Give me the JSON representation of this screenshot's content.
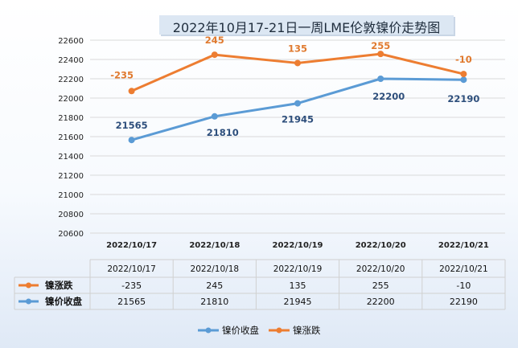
{
  "chart_data": {
    "type": "line",
    "title": "2022年10月17-21日一周LME伦敦镍价走势图",
    "categories": [
      "2022/10/17",
      "2022/10/18",
      "2022/10/19",
      "2022/10/20",
      "2022/10/21"
    ],
    "y_axis": {
      "min": 20600,
      "max": 22600,
      "step": 200,
      "ticks": [
        "20600",
        "20800",
        "21000",
        "21200",
        "21400",
        "21600",
        "21800",
        "22000",
        "22200",
        "22400",
        "22600"
      ]
    },
    "grid": true,
    "legend_position": "bottom",
    "series": [
      {
        "name": "镍价收盘",
        "color": "#5b9bd5",
        "axis": "left",
        "values": [
          21565,
          21810,
          21945,
          22200,
          22190
        ],
        "labels": [
          "21565",
          "21810",
          "21945",
          "22200",
          "22190"
        ]
      },
      {
        "name": "镍涨跌",
        "color": "#ed7d31",
        "axis": "secondary",
        "values": [
          -235,
          245,
          135,
          255,
          -10
        ],
        "labels": [
          "-235",
          "245",
          "135",
          "255",
          "-10"
        ]
      }
    ],
    "table": {
      "rows": [
        {
          "name": "镍涨跌",
          "values": [
            "-235",
            "245",
            "135",
            "255",
            "-10"
          ]
        },
        {
          "name": "镍价收盘",
          "values": [
            "21565",
            "21810",
            "21945",
            "22200",
            "22190"
          ]
        }
      ]
    }
  }
}
